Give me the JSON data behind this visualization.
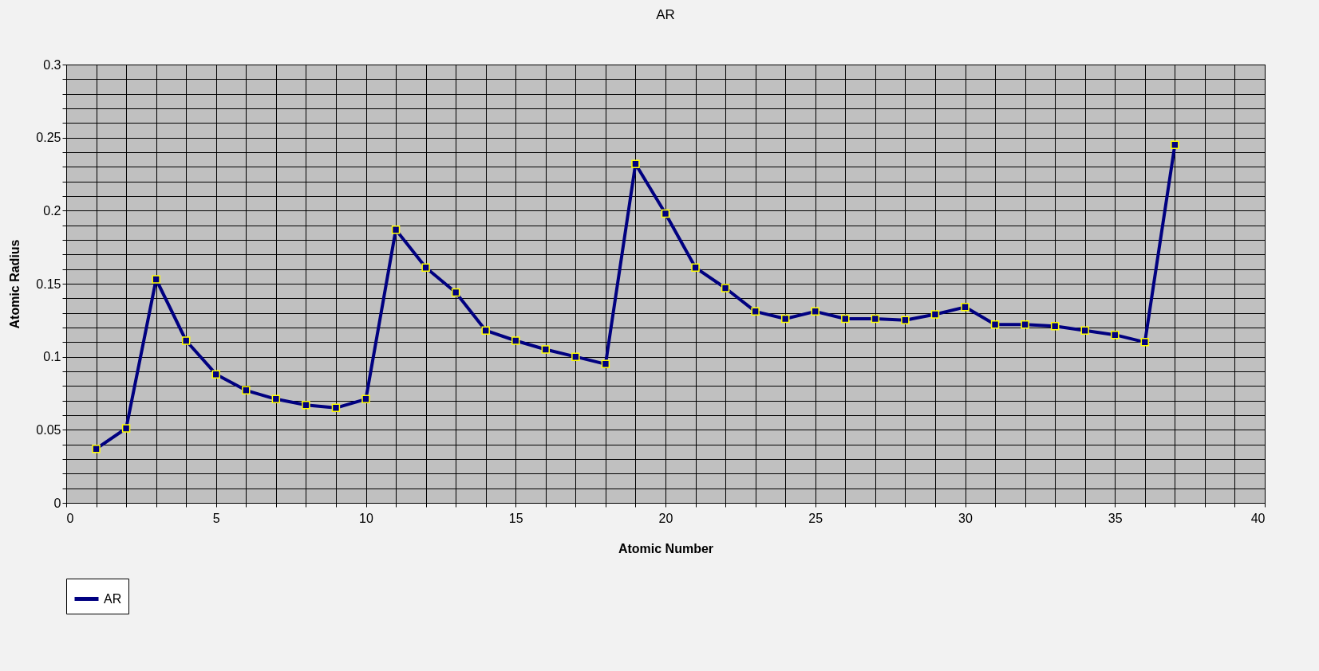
{
  "chart_data": {
    "type": "line",
    "title": "AR",
    "xlabel": "Atomic Number",
    "ylabel": "Atomic Radius",
    "x": [
      1,
      2,
      3,
      4,
      5,
      6,
      7,
      8,
      9,
      10,
      11,
      12,
      13,
      14,
      15,
      16,
      17,
      18,
      19,
      20,
      21,
      22,
      23,
      24,
      25,
      26,
      27,
      28,
      29,
      30,
      31,
      32,
      33,
      34,
      35,
      36,
      37
    ],
    "series": [
      {
        "name": "AR",
        "color": "#000080",
        "values": [
          0.037,
          0.051,
          0.153,
          0.111,
          0.088,
          0.077,
          0.071,
          0.067,
          0.065,
          0.071,
          0.187,
          0.161,
          0.144,
          0.118,
          0.111,
          0.105,
          0.1,
          0.095,
          0.232,
          0.198,
          0.161,
          0.147,
          0.131,
          0.126,
          0.131,
          0.126,
          0.126,
          0.125,
          0.129,
          0.134,
          0.122,
          0.122,
          0.121,
          0.118,
          0.115,
          0.11,
          0.245
        ]
      }
    ],
    "xlim": [
      0,
      40
    ],
    "xticks": [
      0,
      {
        "value": 1,
        "label": null
      },
      {
        "value": 2,
        "label": null
      },
      {
        "value": 3,
        "label": null
      },
      {
        "value": 4,
        "label": null
      },
      5,
      {
        "value": 6,
        "label": null
      },
      {
        "value": 7,
        "label": null
      },
      {
        "value": 8,
        "label": null
      },
      {
        "value": 9,
        "label": null
      },
      10,
      {
        "value": 11,
        "label": null
      },
      {
        "value": 12,
        "label": null
      },
      {
        "value": 13,
        "label": null
      },
      {
        "value": 14,
        "label": null
      },
      15,
      {
        "value": 16,
        "label": null
      },
      {
        "value": 17,
        "label": null
      },
      {
        "value": 18,
        "label": null
      },
      {
        "value": 19,
        "label": null
      },
      20,
      {
        "value": 21,
        "label": null
      },
      {
        "value": 22,
        "label": null
      },
      {
        "value": 23,
        "label": null
      },
      {
        "value": 24,
        "label": null
      },
      25,
      {
        "value": 26,
        "label": null
      },
      {
        "value": 27,
        "label": null
      },
      {
        "value": 28,
        "label": null
      },
      {
        "value": 29,
        "label": null
      },
      30,
      {
        "value": 31,
        "label": null
      },
      {
        "value": 32,
        "label": null
      },
      {
        "value": 33,
        "label": null
      },
      {
        "value": 34,
        "label": null
      },
      35,
      {
        "value": 36,
        "label": null
      },
      {
        "value": 37,
        "label": null
      },
      {
        "value": 38,
        "label": null
      },
      {
        "value": 39,
        "label": null
      },
      40
    ],
    "ylim": [
      0,
      0.3
    ],
    "yticks": [
      0,
      {
        "value": 0.01,
        "label": null
      },
      {
        "value": 0.02,
        "label": null
      },
      {
        "value": 0.03,
        "label": null
      },
      {
        "value": 0.04,
        "label": null
      },
      0.05,
      {
        "value": 0.06,
        "label": null
      },
      {
        "value": 0.07,
        "label": null
      },
      {
        "value": 0.08,
        "label": null
      },
      {
        "value": 0.09,
        "label": null
      },
      0.1,
      {
        "value": 0.11,
        "label": null
      },
      {
        "value": 0.12,
        "label": null
      },
      {
        "value": 0.13,
        "label": null
      },
      {
        "value": 0.14,
        "label": null
      },
      0.15,
      {
        "value": 0.16,
        "label": null
      },
      {
        "value": 0.17,
        "label": null
      },
      {
        "value": 0.18,
        "label": null
      },
      {
        "value": 0.19,
        "label": null
      },
      0.2,
      {
        "value": 0.21,
        "label": null
      },
      {
        "value": 0.22,
        "label": null
      },
      {
        "value": 0.23,
        "label": null
      },
      {
        "value": 0.24,
        "label": null
      },
      0.25,
      {
        "value": 0.26,
        "label": null
      },
      {
        "value": 0.27,
        "label": null
      },
      {
        "value": 0.28,
        "label": null
      },
      {
        "value": 0.29,
        "label": null
      },
      0.3
    ],
    "grid": true,
    "legend": "bottom",
    "marker": "square",
    "line_style": "solid"
  }
}
